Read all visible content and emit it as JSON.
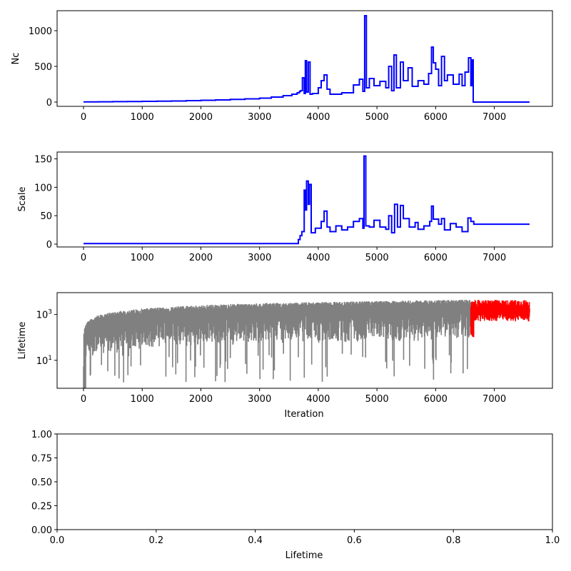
{
  "chart_data": [
    {
      "id": "nc",
      "type": "line",
      "title": "",
      "xlabel": "",
      "ylabel": "Nc",
      "xlim": [
        -450,
        7990
      ],
      "ylim": [
        -60,
        1280
      ],
      "yscale": "linear",
      "xticks": [
        0,
        1000,
        2000,
        3000,
        4000,
        5000,
        6000,
        7000
      ],
      "yticks": [
        0,
        500,
        1000
      ],
      "series": [
        {
          "color": "#0000ff",
          "style": "steps",
          "points": [
            [
              0,
              2
            ],
            [
              250,
              4
            ],
            [
              500,
              6
            ],
            [
              750,
              8
            ],
            [
              1000,
              10
            ],
            [
              1250,
              12
            ],
            [
              1500,
              15
            ],
            [
              1750,
              20
            ],
            [
              2000,
              25
            ],
            [
              2250,
              30
            ],
            [
              2500,
              38
            ],
            [
              2750,
              45
            ],
            [
              3000,
              55
            ],
            [
              3200,
              70
            ],
            [
              3400,
              90
            ],
            [
              3550,
              110
            ],
            [
              3640,
              130
            ],
            [
              3680,
              150
            ],
            [
              3700,
              160
            ],
            [
              3730,
              340
            ],
            [
              3760,
              120
            ],
            [
              3780,
              580
            ],
            [
              3800,
              140
            ],
            [
              3830,
              560
            ],
            [
              3860,
              110
            ],
            [
              3900,
              120
            ],
            [
              4000,
              200
            ],
            [
              4050,
              300
            ],
            [
              4100,
              380
            ],
            [
              4150,
              180
            ],
            [
              4200,
              110
            ],
            [
              4400,
              130
            ],
            [
              4600,
              240
            ],
            [
              4700,
              320
            ],
            [
              4760,
              150
            ],
            [
              4790,
              1210
            ],
            [
              4820,
              200
            ],
            [
              4870,
              330
            ],
            [
              4950,
              230
            ],
            [
              5050,
              290
            ],
            [
              5150,
              200
            ],
            [
              5200,
              500
            ],
            [
              5250,
              160
            ],
            [
              5290,
              660
            ],
            [
              5330,
              200
            ],
            [
              5400,
              560
            ],
            [
              5450,
              300
            ],
            [
              5530,
              480
            ],
            [
              5600,
              220
            ],
            [
              5700,
              300
            ],
            [
              5800,
              250
            ],
            [
              5880,
              400
            ],
            [
              5930,
              770
            ],
            [
              5960,
              550
            ],
            [
              6000,
              460
            ],
            [
              6050,
              230
            ],
            [
              6100,
              640
            ],
            [
              6150,
              300
            ],
            [
              6200,
              380
            ],
            [
              6300,
              250
            ],
            [
              6400,
              390
            ],
            [
              6450,
              230
            ],
            [
              6500,
              420
            ],
            [
              6560,
              620
            ],
            [
              6600,
              230
            ],
            [
              6620,
              590
            ],
            [
              6640,
              0
            ],
            [
              7600,
              0
            ]
          ]
        }
      ]
    },
    {
      "id": "scale",
      "type": "line",
      "title": "",
      "xlabel": "",
      "ylabel": "Scale",
      "xlim": [
        -450,
        7990
      ],
      "ylim": [
        -5,
        162
      ],
      "yscale": "linear",
      "xticks": [
        0,
        1000,
        2000,
        3000,
        4000,
        5000,
        6000,
        7000
      ],
      "yticks": [
        0,
        50,
        100,
        150
      ],
      "series": [
        {
          "color": "#0000ff",
          "style": "steps",
          "points": [
            [
              0,
              1
            ],
            [
              3650,
              1
            ],
            [
              3660,
              8
            ],
            [
              3690,
              15
            ],
            [
              3720,
              22
            ],
            [
              3760,
              95
            ],
            [
              3780,
              60
            ],
            [
              3800,
              111
            ],
            [
              3830,
              70
            ],
            [
              3850,
              105
            ],
            [
              3880,
              20
            ],
            [
              3950,
              28
            ],
            [
              4050,
              40
            ],
            [
              4100,
              58
            ],
            [
              4150,
              30
            ],
            [
              4200,
              22
            ],
            [
              4300,
              32
            ],
            [
              4400,
              25
            ],
            [
              4500,
              30
            ],
            [
              4600,
              40
            ],
            [
              4700,
              45
            ],
            [
              4760,
              28
            ],
            [
              4780,
              155
            ],
            [
              4810,
              32
            ],
            [
              4870,
              30
            ],
            [
              4950,
              42
            ],
            [
              5050,
              30
            ],
            [
              5150,
              26
            ],
            [
              5200,
              50
            ],
            [
              5250,
              20
            ],
            [
              5300,
              70
            ],
            [
              5350,
              30
            ],
            [
              5400,
              68
            ],
            [
              5450,
              45
            ],
            [
              5550,
              30
            ],
            [
              5650,
              38
            ],
            [
              5700,
              26
            ],
            [
              5800,
              32
            ],
            [
              5900,
              40
            ],
            [
              5930,
              67
            ],
            [
              5960,
              44
            ],
            [
              6050,
              35
            ],
            [
              6100,
              45
            ],
            [
              6150,
              25
            ],
            [
              6250,
              36
            ],
            [
              6350,
              30
            ],
            [
              6450,
              22
            ],
            [
              6550,
              46
            ],
            [
              6600,
              40
            ],
            [
              6650,
              35
            ],
            [
              7600,
              35
            ]
          ]
        }
      ]
    },
    {
      "id": "lifetime-iter",
      "type": "line",
      "title": "",
      "xlabel": "Iteration",
      "ylabel": "Lifetime",
      "xlim": [
        -450,
        7990
      ],
      "ylim": [
        0.6,
        9000
      ],
      "yscale": "log",
      "xticks": [
        0,
        1000,
        2000,
        3000,
        4000,
        5000,
        6000,
        7000
      ],
      "yticks": [
        10,
        1000
      ],
      "ytick_labels": [
        "10^1",
        "10^3"
      ],
      "series": [
        {
          "color": "#808080",
          "style": "noisy-envelope",
          "x_range": [
            0,
            6600
          ]
        },
        {
          "color": "#ff0000",
          "style": "noisy-envelope",
          "x_range": [
            6600,
            7600
          ]
        }
      ]
    },
    {
      "id": "lifetime-hist",
      "type": "bar",
      "title": "",
      "xlabel": "Lifetime",
      "ylabel": "",
      "xlim": [
        0,
        1
      ],
      "ylim": [
        0,
        1
      ],
      "yscale": "linear",
      "xticks": [
        0.0,
        0.2,
        0.4,
        0.6,
        0.8,
        1.0
      ],
      "yticks": [
        0.0,
        0.25,
        0.5,
        0.75,
        1.0
      ],
      "xtick_labels": [
        "0.0",
        "0.2",
        "0.4",
        "0.6",
        "0.8",
        "1.0"
      ],
      "ytick_labels": [
        "0.00",
        "0.25",
        "0.50",
        "0.75",
        "1.00"
      ],
      "series": []
    }
  ]
}
